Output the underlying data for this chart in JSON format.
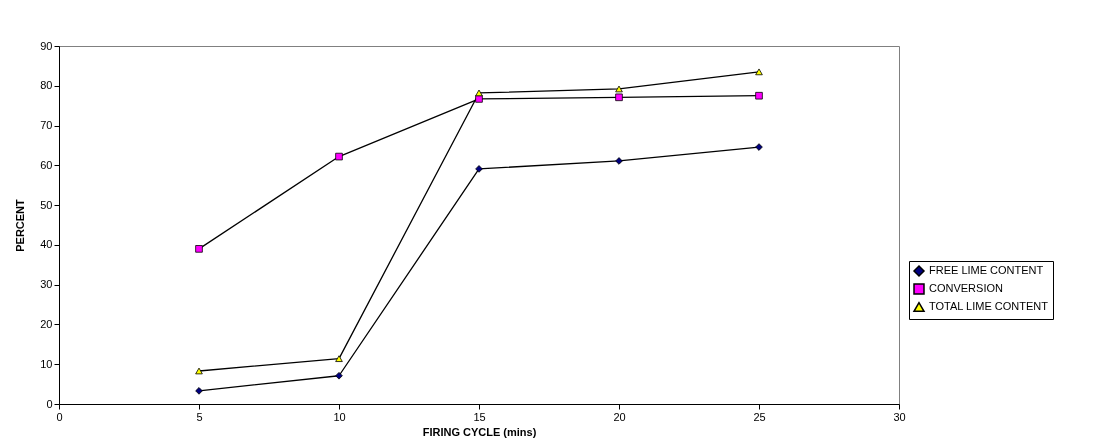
{
  "chart_data": {
    "type": "line",
    "xlabel": "FIRING CYCLE (mins)",
    "ylabel": "PERCENT",
    "x": [
      5,
      10,
      15,
      20,
      25
    ],
    "xlim": [
      0,
      30
    ],
    "xticks": [
      0,
      5,
      10,
      15,
      20,
      25,
      30
    ],
    "ylim": [
      0,
      90
    ],
    "yticks": [
      0,
      10,
      20,
      30,
      40,
      50,
      60,
      70,
      80,
      90
    ],
    "legend": "right",
    "grid": false,
    "series": [
      {
        "name": "FREE LIME CONTENT",
        "color": "#000080",
        "marker": "diamond",
        "values": [
          3.3,
          7.1,
          59.1,
          61.1,
          64.6
        ]
      },
      {
        "name": "CONVERSION",
        "color": "#ff00ff",
        "marker": "square",
        "values": [
          39,
          62.2,
          76.7,
          77.1,
          77.5
        ]
      },
      {
        "name": "TOTAL LIME CONTENT",
        "color": "#ffff00",
        "marker": "triangle",
        "values": [
          8.3,
          11.4,
          78.2,
          79.2,
          83.5
        ]
      }
    ]
  }
}
